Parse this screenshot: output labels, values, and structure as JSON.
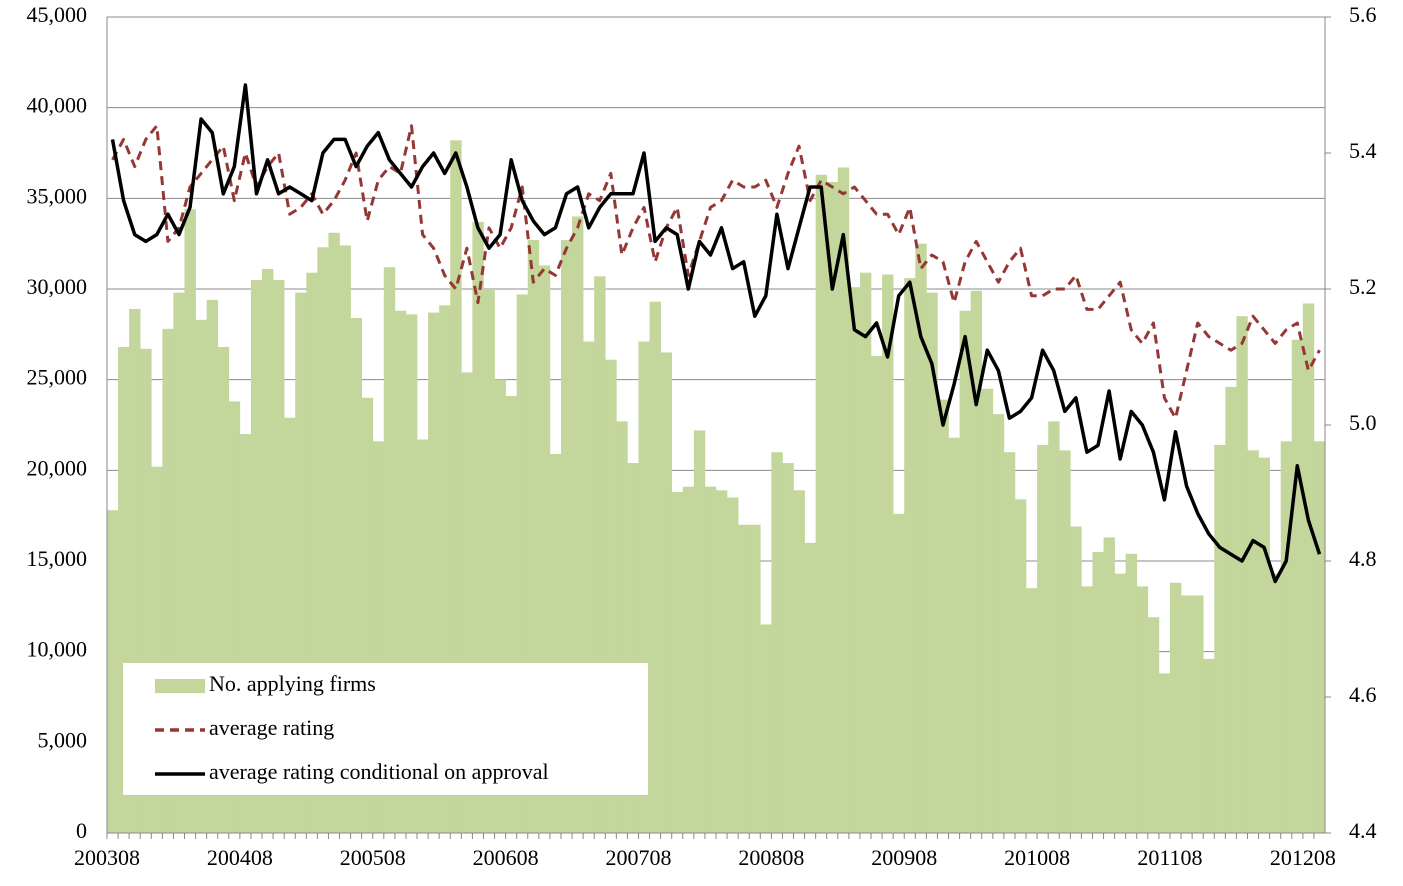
{
  "chart_data": {
    "type": "bar-line",
    "categories": [
      "200308",
      null,
      null,
      null,
      null,
      null,
      null,
      null,
      null,
      null,
      null,
      null,
      "200408",
      null,
      null,
      null,
      null,
      null,
      null,
      null,
      null,
      null,
      null,
      null,
      "200508",
      null,
      null,
      null,
      null,
      null,
      null,
      null,
      null,
      null,
      null,
      null,
      "200608",
      null,
      null,
      null,
      null,
      null,
      null,
      null,
      null,
      null,
      null,
      null,
      "200708",
      null,
      null,
      null,
      null,
      null,
      null,
      null,
      null,
      null,
      null,
      null,
      "200808",
      null,
      null,
      null,
      null,
      null,
      null,
      null,
      null,
      null,
      null,
      null,
      "200908",
      null,
      null,
      null,
      null,
      null,
      null,
      null,
      null,
      null,
      null,
      null,
      "201008",
      null,
      null,
      null,
      null,
      null,
      null,
      null,
      null,
      null,
      null,
      null,
      "201108",
      null,
      null,
      null,
      null,
      null,
      null,
      null,
      null,
      null,
      null,
      null,
      "201208",
      null
    ],
    "series": [
      {
        "name": "No. applying firms",
        "type": "bar",
        "color": "#c3d69b",
        "values": [
          17800,
          26800,
          28900,
          26700,
          20200,
          27800,
          29800,
          34400,
          28300,
          29400,
          26800,
          23800,
          22000,
          30500,
          31100,
          30500,
          22900,
          29800,
          30900,
          32300,
          33100,
          32400,
          28400,
          24000,
          21600,
          31200,
          28800,
          28600,
          21700,
          28700,
          29100,
          38200,
          25400,
          33700,
          30000,
          25000,
          24100,
          29700,
          32700,
          31300,
          20900,
          32700,
          34000,
          27100,
          30700,
          26100,
          22700,
          20400,
          27100,
          29300,
          26500,
          18800,
          19100,
          22200,
          19100,
          18900,
          18500,
          17000,
          17000,
          11500,
          21000,
          20400,
          18900,
          16000,
          36300,
          35900,
          36700,
          30100,
          30900,
          26300,
          30800,
          17600,
          30600,
          32500,
          29800,
          23900,
          21800,
          28800,
          29900,
          24500,
          23100,
          21000,
          18400,
          13500,
          21400,
          22700,
          21100,
          16900,
          13600,
          15500,
          16300,
          14300,
          15400,
          13600,
          11900,
          8800,
          13800,
          13100,
          13100,
          9600,
          21400,
          24600,
          28500,
          21100,
          20700,
          14300,
          21600,
          27200,
          29200,
          21600
        ]
      },
      {
        "name": "average rating",
        "type": "line",
        "axis": "y2",
        "color": "#953735",
        "dashed": true,
        "values": [
          5.39,
          5.42,
          5.38,
          5.42,
          5.44,
          5.27,
          5.29,
          5.35,
          5.37,
          5.39,
          5.41,
          5.33,
          5.4,
          5.35,
          5.38,
          5.4,
          5.31,
          5.32,
          5.34,
          5.31,
          5.33,
          5.36,
          5.4,
          5.3,
          5.36,
          5.38,
          5.37,
          5.44,
          5.28,
          5.26,
          5.22,
          5.2,
          5.26,
          5.18,
          5.29,
          5.26,
          5.29,
          5.35,
          5.21,
          5.23,
          5.22,
          5.26,
          5.29,
          5.34,
          5.33,
          5.37,
          5.25,
          5.29,
          5.32,
          5.24,
          5.29,
          5.32,
          5.22,
          5.27,
          5.32,
          5.33,
          5.36,
          5.35,
          5.35,
          5.36,
          5.32,
          5.37,
          5.41,
          5.33,
          5.36,
          5.35,
          5.34,
          5.35,
          5.33,
          5.31,
          5.31,
          5.28,
          5.32,
          5.23,
          5.25,
          5.24,
          5.18,
          5.24,
          5.27,
          5.24,
          5.21,
          5.24,
          5.26,
          5.19,
          5.19,
          5.2,
          5.2,
          5.22,
          5.17,
          5.17,
          5.19,
          5.21,
          5.14,
          5.12,
          5.15,
          5.04,
          5.01,
          5.08,
          5.15,
          5.13,
          5.12,
          5.11,
          5.12,
          5.16,
          5.14,
          5.12,
          5.14,
          5.15,
          5.08,
          5.11
        ]
      },
      {
        "name": "average rating conditional on approval",
        "type": "line",
        "axis": "y2",
        "color": "#000000",
        "dashed": false,
        "values": [
          5.42,
          5.33,
          5.28,
          5.27,
          5.28,
          5.31,
          5.28,
          5.32,
          5.45,
          5.43,
          5.34,
          5.38,
          5.5,
          5.34,
          5.39,
          5.34,
          5.35,
          5.34,
          5.33,
          5.4,
          5.42,
          5.42,
          5.38,
          5.41,
          5.43,
          5.39,
          5.37,
          5.35,
          5.38,
          5.4,
          5.37,
          5.4,
          5.35,
          5.29,
          5.26,
          5.28,
          5.39,
          5.33,
          5.3,
          5.28,
          5.29,
          5.34,
          5.35,
          5.29,
          5.32,
          5.34,
          5.34,
          5.34,
          5.4,
          5.27,
          5.29,
          5.28,
          5.2,
          5.27,
          5.25,
          5.29,
          5.23,
          5.24,
          5.16,
          5.19,
          5.31,
          5.23,
          5.29,
          5.35,
          5.35,
          5.2,
          5.28,
          5.14,
          5.13,
          5.15,
          5.1,
          5.19,
          5.21,
          5.13,
          5.09,
          5.0,
          5.06,
          5.13,
          5.03,
          5.11,
          5.08,
          5.01,
          5.02,
          5.04,
          5.11,
          5.08,
          5.02,
          5.04,
          4.96,
          4.97,
          5.05,
          4.95,
          5.02,
          5.0,
          4.96,
          4.89,
          4.99,
          4.91,
          4.87,
          4.84,
          4.82,
          4.81,
          4.8,
          4.83,
          4.82,
          4.77,
          4.8,
          4.94,
          4.86,
          4.81
        ]
      }
    ],
    "ylim": [
      0,
      45000
    ],
    "yticks": [
      {
        "value": 0,
        "label": "0"
      },
      {
        "value": 5000,
        "label": "5,000"
      },
      {
        "value": 10000,
        "label": "10,000"
      },
      {
        "value": 15000,
        "label": "15,000"
      },
      {
        "value": 20000,
        "label": "20,000"
      },
      {
        "value": 25000,
        "label": "25,000"
      },
      {
        "value": 30000,
        "label": "30,000"
      },
      {
        "value": 35000,
        "label": "35,000"
      },
      {
        "value": 40000,
        "label": "40,000"
      },
      {
        "value": 45000,
        "label": "45,000"
      }
    ],
    "y2lim": [
      4.4,
      5.6
    ],
    "y2ticks": [
      4.4,
      4.6,
      4.8,
      {
        "value": 5,
        "label": "5.0"
      },
      5.2,
      5.4,
      5.6
    ],
    "grid": true,
    "legend": "lower left"
  }
}
